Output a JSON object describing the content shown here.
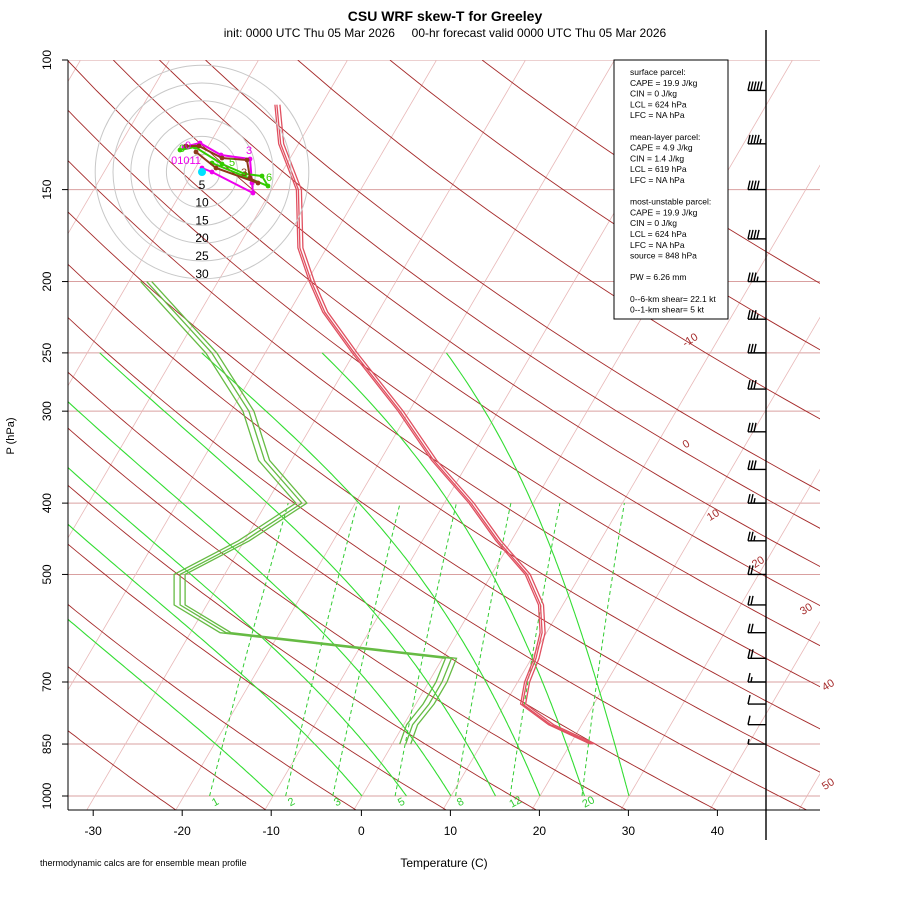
{
  "chart_data": {
    "type": "skew-t",
    "title": "CSU WRF skew-T for Greeley",
    "subtitle": "init: 0000 UTC Thu 05 Mar 2026     00-hr forecast valid 0000 UTC Thu 05 Mar 2026",
    "xlabel": "Temperature (C)",
    "ylabel": "P (hPa)",
    "footnote": "thermodynamic calcs are for ensemble mean profile",
    "x_ticks": [
      -30,
      -20,
      -10,
      0,
      10,
      20,
      30,
      40
    ],
    "y_ticks": [
      100,
      150,
      200,
      250,
      300,
      400,
      500,
      700,
      850,
      1000
    ],
    "isotherm_labels": [
      "-10",
      "0",
      "10",
      "20",
      "30",
      "40",
      "50"
    ],
    "mixing_ratio_labels": [
      "1",
      "2",
      "3",
      "5",
      "8",
      "12",
      "20"
    ],
    "dry_adiabats_K": [
      250,
      260,
      270,
      280,
      290,
      300,
      310,
      320,
      330,
      340,
      350,
      360,
      370,
      380,
      390,
      400,
      420,
      440,
      460
    ],
    "moist_adiabats_C": [
      -10,
      0,
      5,
      10,
      15,
      20,
      25,
      30
    ],
    "temperature_profile": [
      {
        "p": 850,
        "t": 22.5
      },
      {
        "p": 800,
        "t": 16.5
      },
      {
        "p": 750,
        "t": 12.0
      },
      {
        "p": 700,
        "t": 11.0
      },
      {
        "p": 650,
        "t": 10.5
      },
      {
        "p": 600,
        "t": 9.5
      },
      {
        "p": 550,
        "t": 7.5
      },
      {
        "p": 500,
        "t": 4.0
      },
      {
        "p": 450,
        "t": -1.5
      },
      {
        "p": 400,
        "t": -7.0
      },
      {
        "p": 350,
        "t": -14.0
      },
      {
        "p": 300,
        "t": -21.0
      },
      {
        "p": 250,
        "t": -30.0
      },
      {
        "p": 220,
        "t": -36.0
      },
      {
        "p": 200,
        "t": -39.5
      },
      {
        "p": 180,
        "t": -43.0
      },
      {
        "p": 150,
        "t": -47.0
      },
      {
        "p": 130,
        "t": -52.0
      },
      {
        "p": 115,
        "t": -55.0
      }
    ],
    "dewpoint_profile": [
      {
        "p": 850,
        "t": 1.5
      },
      {
        "p": 800,
        "t": 1.0
      },
      {
        "p": 750,
        "t": 1.5
      },
      {
        "p": 700,
        "t": 1.5
      },
      {
        "p": 650,
        "t": 1.0
      },
      {
        "p": 600,
        "t": -26.0
      },
      {
        "p": 550,
        "t": -33.0
      },
      {
        "p": 500,
        "t": -35.0
      },
      {
        "p": 450,
        "t": -30.0
      },
      {
        "p": 400,
        "t": -26.0
      },
      {
        "p": 350,
        "t": -33.0
      },
      {
        "p": 300,
        "t": -38.0
      },
      {
        "p": 250,
        "t": -46.0
      },
      {
        "p": 200,
        "t": -58.0
      }
    ],
    "hodograph_rings": [
      "5",
      "10",
      "15",
      "20",
      "25",
      "30"
    ],
    "hodograph_labels": [
      "3",
      "3",
      "5",
      "6",
      "0",
      "0",
      "01011"
    ],
    "stats_box": [
      "surface parcel:",
      "CAPE = 19.9 J/kg",
      "CIN = 0 J/kg",
      "LCL = 624 hPa",
      "LFC = NA hPa",
      "",
      "mean-layer parcel:",
      "CAPE = 4.9 J/kg",
      "CIN = 1.4 J/kg",
      "LCL = 619 hPa",
      "LFC = NA hPa",
      "",
      "most-unstable parcel:",
      "CAPE = 19.9 J/kg",
      "CIN = 0 J/kg",
      "LCL = 624 hPa",
      "LFC = NA hPa",
      "source = 848 hPa",
      "",
      "PW =  6.26 mm",
      "",
      "0--6-km shear= 22.1 kt",
      "0--1-km shear= 5 kt"
    ],
    "wind_barbs_kt": [
      {
        "p": 110,
        "speed": 50,
        "dir": 270
      },
      {
        "p": 130,
        "speed": 45,
        "dir": 270
      },
      {
        "p": 150,
        "speed": 40,
        "dir": 270
      },
      {
        "p": 175,
        "speed": 40,
        "dir": 270
      },
      {
        "p": 200,
        "speed": 35,
        "dir": 270
      },
      {
        "p": 225,
        "speed": 35,
        "dir": 275
      },
      {
        "p": 250,
        "speed": 30,
        "dir": 280
      },
      {
        "p": 280,
        "speed": 30,
        "dir": 280
      },
      {
        "p": 320,
        "speed": 30,
        "dir": 280
      },
      {
        "p": 360,
        "speed": 30,
        "dir": 280
      },
      {
        "p": 400,
        "speed": 25,
        "dir": 285
      },
      {
        "p": 450,
        "speed": 25,
        "dir": 290
      },
      {
        "p": 500,
        "speed": 20,
        "dir": 300
      },
      {
        "p": 550,
        "speed": 20,
        "dir": 300
      },
      {
        "p": 600,
        "speed": 20,
        "dir": 300
      },
      {
        "p": 650,
        "speed": 20,
        "dir": 305
      },
      {
        "p": 700,
        "speed": 15,
        "dir": 310
      },
      {
        "p": 750,
        "speed": 10,
        "dir": 320
      },
      {
        "p": 800,
        "speed": 10,
        "dir": 330
      },
      {
        "p": 850,
        "speed": 5,
        "dir": 340
      }
    ],
    "colors": {
      "isotherm": "#a52a2a",
      "isobar": "#d9a0a0",
      "mixing_ratio": "#33cc33",
      "moist_adiabat": "#33dd33",
      "temperature": "#e05060",
      "dewpoint": "#66bb44",
      "hodo_magenta": "#ee00ee",
      "hodo_brown": "#8b3a1a",
      "hodo_green": "#33cc00",
      "hodo_cyan": "#00e0ff"
    }
  }
}
